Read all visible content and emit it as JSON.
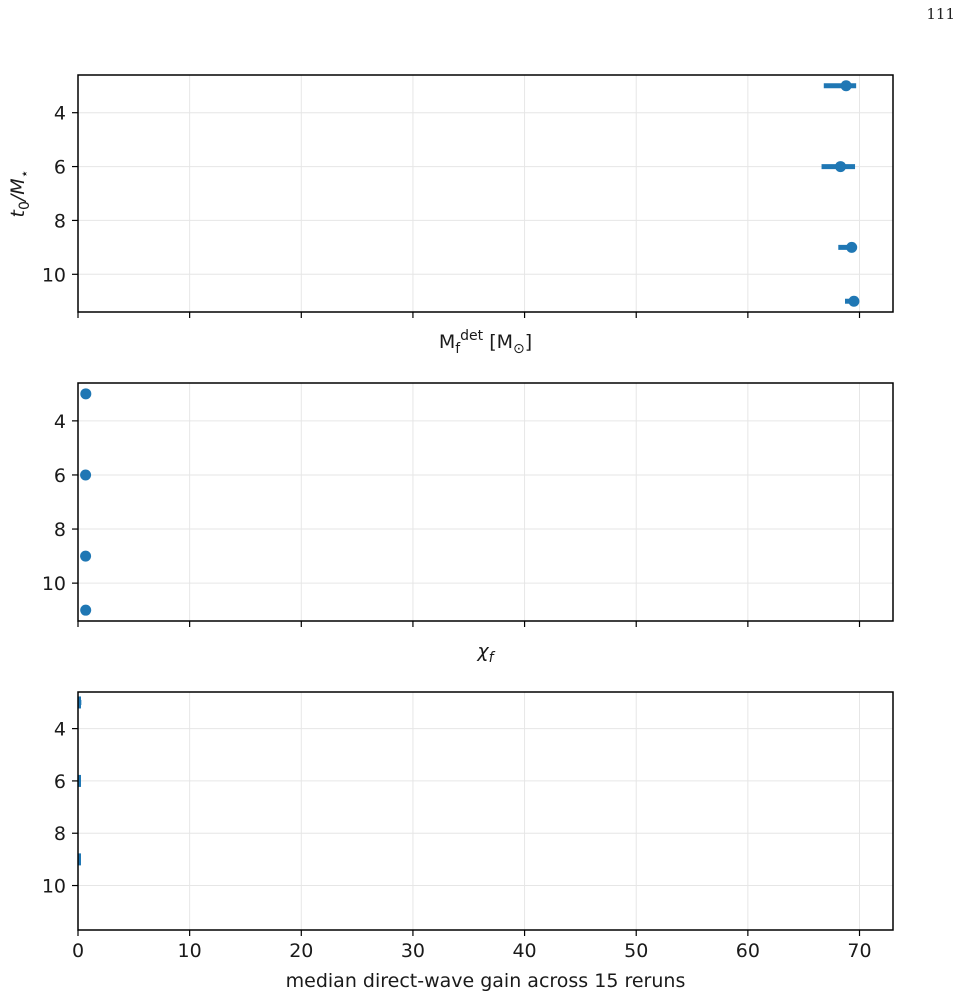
{
  "page": {
    "number": "111"
  },
  "colors": {
    "series": "#1f77b4",
    "grid": "#e6e6e6",
    "axis": "#000000"
  },
  "chart_data": [
    {
      "type": "scatter",
      "title": "",
      "xlabel": "M_f^det [M_⊙]",
      "ylabel": "t0/M*",
      "ylim": [
        11.4,
        2.6
      ],
      "y_inverted": true,
      "yticks": [
        4,
        6,
        8,
        10
      ],
      "xlim": [
        0,
        73
      ],
      "xticks": [
        0,
        10,
        20,
        30,
        40,
        50,
        60,
        70
      ],
      "x_tick_labels_shown": false,
      "grid": true,
      "points": [
        {
          "y": 3,
          "x": 68.8,
          "xerr_low": 2.0,
          "xerr_high": 0.9
        },
        {
          "y": 6,
          "x": 68.3,
          "xerr_low": 1.7,
          "xerr_high": 1.3
        },
        {
          "y": 9,
          "x": 69.3,
          "xerr_low": 1.2,
          "xerr_high": 0.3
        },
        {
          "y": 11,
          "x": 69.5,
          "xerr_low": 0.8,
          "xerr_high": 0.2
        }
      ]
    },
    {
      "type": "scatter",
      "title": "",
      "xlabel": "χ_f",
      "ylabel": "",
      "ylim": [
        11.4,
        2.6
      ],
      "y_inverted": true,
      "yticks": [
        4,
        6,
        8,
        10
      ],
      "xlim": [
        0,
        73
      ],
      "xticks": [
        0,
        10,
        20,
        30,
        40,
        50,
        60,
        70
      ],
      "x_tick_labels_shown": false,
      "grid": true,
      "points": [
        {
          "y": 3,
          "x": 0.7,
          "xerr_low": 0,
          "xerr_high": 0
        },
        {
          "y": 6,
          "x": 0.68,
          "xerr_low": 0,
          "xerr_high": 0
        },
        {
          "y": 9,
          "x": 0.68,
          "xerr_low": 0,
          "xerr_high": 0
        },
        {
          "y": 11,
          "x": 0.69,
          "xerr_low": 0,
          "xerr_high": 0
        }
      ]
    },
    {
      "type": "scatter",
      "title": "",
      "xlabel": "median direct-wave gain across 15 reruns",
      "ylabel": "",
      "ylim": [
        11.7,
        2.6
      ],
      "y_inverted": true,
      "yticks": [
        4,
        6,
        8,
        10
      ],
      "xlim": [
        0,
        73
      ],
      "xticks": [
        0,
        10,
        20,
        30,
        40,
        50,
        60,
        70
      ],
      "x_tick_labels_shown": true,
      "grid": true,
      "points": [
        {
          "y": 3,
          "x": 0.15,
          "xerr_low": 0.15,
          "xerr_high": 0.15
        },
        {
          "y": 6,
          "x": 0.05,
          "xerr_low": 0.05,
          "xerr_high": 0.05
        },
        {
          "y": 9,
          "x": 0.02,
          "xerr_low": 0.02,
          "xerr_high": 0.02
        }
      ]
    }
  ]
}
